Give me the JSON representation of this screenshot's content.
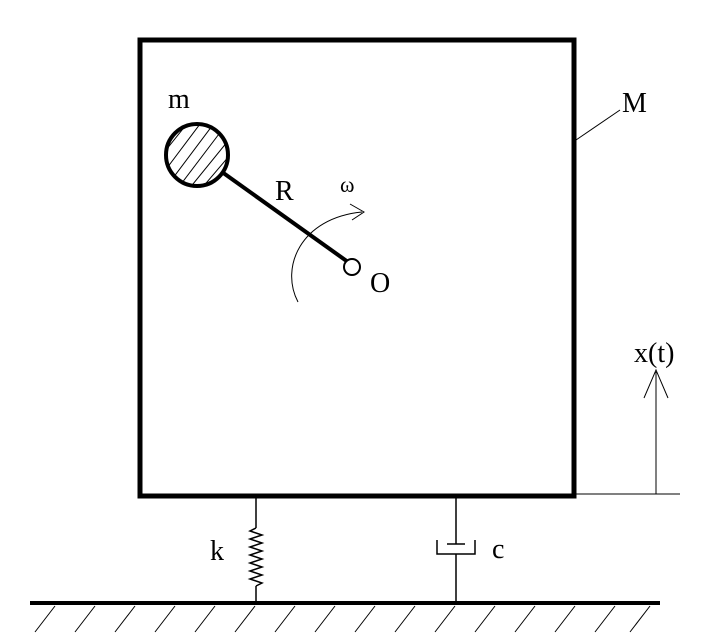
{
  "diagram": {
    "labels": {
      "mass_small": "m",
      "mass_large": "M",
      "radius": "R",
      "omega": "ω",
      "pivot": "O",
      "displacement": "x(t)",
      "spring": "k",
      "damper": "c"
    },
    "colors": {
      "stroke": "#000000",
      "background": "#ffffff"
    }
  }
}
